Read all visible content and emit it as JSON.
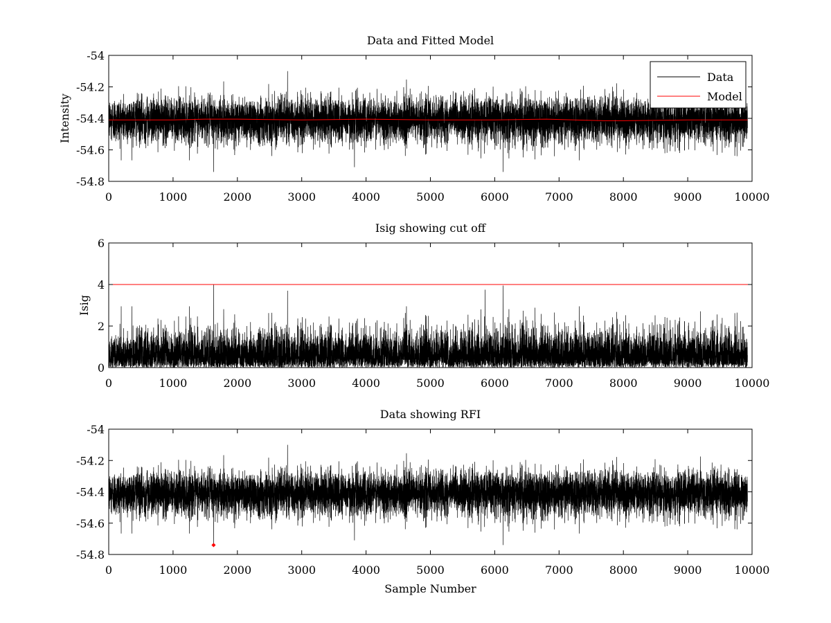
{
  "colors": {
    "data": "#000000",
    "model": "#ff0000",
    "cutoff": "#ff0000",
    "rfi": "#ff0000"
  },
  "chart_data": [
    {
      "type": "line",
      "title": "Data and Fitted Model",
      "xlabel": "",
      "ylabel": "Intensity",
      "xlim": [
        0,
        10000
      ],
      "ylim": [
        -54.8,
        -54
      ],
      "xticks": [
        0,
        1000,
        2000,
        3000,
        4000,
        5000,
        6000,
        7000,
        8000,
        9000,
        10000
      ],
      "yticks": [
        -54,
        -54.2,
        -54.4,
        -54.6,
        -54.8
      ],
      "ytick_labels": [
        "-54",
        "-54.2",
        "-54.4",
        "-54.6",
        "-54.8"
      ],
      "legend": {
        "position": "top-right",
        "entries": [
          "Data",
          "Model"
        ]
      },
      "series": [
        {
          "name": "Data",
          "n_samples": 9930,
          "mean": -54.41,
          "std": 0.075,
          "min": -54.74,
          "max": -54.1,
          "spikes": [
            {
              "x": 1630,
              "y": -54.74
            },
            {
              "x": 2780,
              "y": -54.1
            },
            {
              "x": 6130,
              "y": -54.74
            },
            {
              "x": 3820,
              "y": -54.71
            }
          ]
        },
        {
          "name": "Model",
          "x": [
            0,
            1000,
            1500,
            2000,
            3000,
            4000,
            5000,
            6000,
            6800,
            7700,
            8000,
            9000,
            9930
          ],
          "values": [
            -54.41,
            -54.41,
            -54.405,
            -54.405,
            -54.41,
            -54.405,
            -54.41,
            -54.41,
            -54.405,
            -54.415,
            -54.415,
            -54.41,
            -54.41
          ]
        }
      ]
    },
    {
      "type": "line",
      "title": "Isig showing cut off",
      "xlabel": "",
      "ylabel": "Isig",
      "xlim": [
        0,
        10000
      ],
      "ylim": [
        0,
        6
      ],
      "xticks": [
        0,
        1000,
        2000,
        3000,
        4000,
        5000,
        6000,
        7000,
        8000,
        9000,
        10000
      ],
      "yticks": [
        0,
        2,
        4,
        6
      ],
      "ytick_labels": [
        "0",
        "2",
        "4",
        "6"
      ],
      "series": [
        {
          "name": "Isig",
          "n_samples": 9930,
          "min": 0,
          "max": 4.0,
          "spikes": [
            {
              "x": 1630,
              "y": 4.0
            },
            {
              "x": 6130,
              "y": 3.95
            },
            {
              "x": 2780,
              "y": 3.7
            },
            {
              "x": 5850,
              "y": 3.75
            }
          ]
        },
        {
          "name": "Cut off",
          "x": [
            0,
            10000
          ],
          "values": [
            4,
            4
          ]
        }
      ]
    },
    {
      "type": "line",
      "title": "Data showing RFI",
      "xlabel": "Sample Number",
      "ylabel": "",
      "xlim": [
        0,
        10000
      ],
      "ylim": [
        -54.8,
        -54
      ],
      "xticks": [
        0,
        1000,
        2000,
        3000,
        4000,
        5000,
        6000,
        7000,
        8000,
        9000,
        10000
      ],
      "yticks": [
        -54,
        -54.2,
        -54.4,
        -54.6,
        -54.8
      ],
      "ytick_labels": [
        "-54",
        "-54.2",
        "-54.4",
        "-54.6",
        "-54.8"
      ],
      "series": [
        {
          "name": "Data",
          "n_samples": 9930,
          "mean": -54.41,
          "std": 0.075,
          "min": -54.74,
          "max": -54.1
        },
        {
          "name": "RFI",
          "x": [
            1630
          ],
          "values": [
            -54.74
          ]
        }
      ]
    }
  ]
}
